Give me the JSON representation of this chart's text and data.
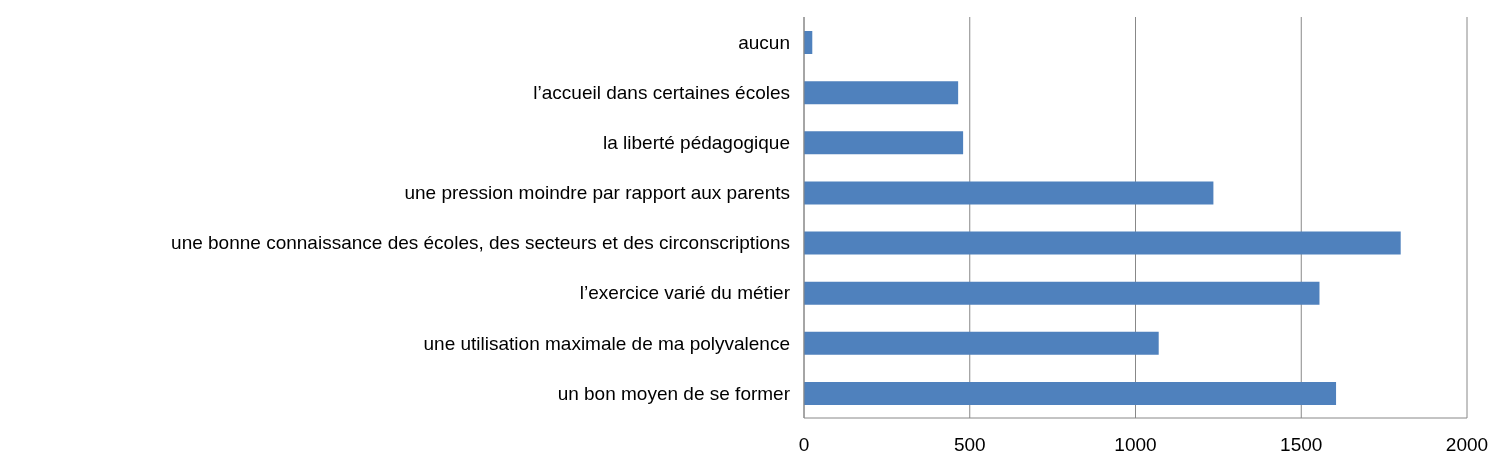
{
  "chart_data": {
    "type": "bar",
    "orientation": "horizontal",
    "categories": [
      "aucun",
      "l’accueil dans certaines écoles",
      "la liberté pédagogique",
      "une pression moindre par rapport aux parents",
      "une bonne connaissance des écoles, des secteurs et des circonscriptions",
      "l’exercice varié du métier",
      "une utilisation maximale de ma polyvalence",
      "un bon moyen de se former"
    ],
    "values": [
      25,
      465,
      480,
      1235,
      1800,
      1555,
      1070,
      1605
    ],
    "color": "#4f81bd",
    "xlim": [
      0,
      2000
    ],
    "xticks": [
      0,
      500,
      1000,
      1500,
      2000
    ],
    "grid": "x",
    "legend": false
  }
}
